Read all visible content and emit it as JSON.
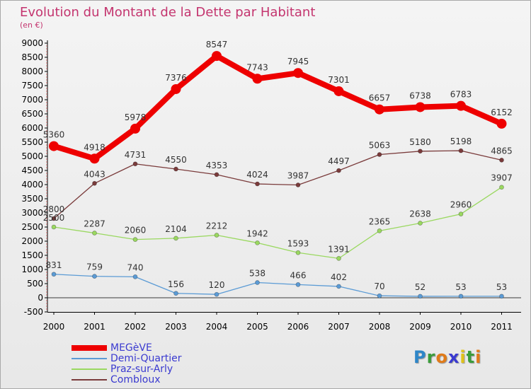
{
  "title": "Evolution du Montant de la Dette par Habitant",
  "unit": "(en €)",
  "logo": {
    "letters": [
      {
        "ch": "P",
        "color": "#2e86c8"
      },
      {
        "ch": "r",
        "color": "#3a9c3a"
      },
      {
        "ch": "o",
        "color": "#e07b1a"
      },
      {
        "ch": "x",
        "color": "#3a3ad0"
      },
      {
        "ch": "i",
        "color": "#e0c21a"
      },
      {
        "ch": "t",
        "color": "#3a9c3a"
      },
      {
        "ch": "i",
        "color": "#e07b1a"
      }
    ]
  },
  "chart_data": {
    "type": "line",
    "x": [
      "2000",
      "2001",
      "2002",
      "2003",
      "2004",
      "2005",
      "2006",
      "2007",
      "2008",
      "2009",
      "2010",
      "2011"
    ],
    "yticks": [
      "-500",
      "0",
      "500",
      "1000",
      "1500",
      "2000",
      "2500",
      "3000",
      "3500",
      "4000",
      "4500",
      "5000",
      "5500",
      "6000",
      "6500",
      "7000",
      "7500",
      "8000",
      "8500",
      "9000"
    ],
    "ylim": [
      -500,
      9000
    ],
    "grid": false,
    "legend_position": "bottom-left",
    "series": [
      {
        "name": "MEGèVE",
        "color": "#ee0000",
        "values": [
          5360,
          4918,
          5978,
          7376,
          8547,
          7743,
          7945,
          7301,
          6657,
          6738,
          6783,
          6152
        ],
        "labels": [
          "5360",
          "4918",
          "5978",
          "7376",
          "8547",
          "7743",
          "7945",
          "7301",
          "6657",
          "6738",
          "6783",
          "6152"
        ]
      },
      {
        "name": "Demi-Quartier",
        "color": "#5b9bd5",
        "values": [
          831,
          759,
          740,
          156,
          120,
          538,
          466,
          402,
          70,
          52,
          53,
          53
        ],
        "labels": [
          "831",
          "759",
          "740",
          "156",
          "120",
          "538",
          "466",
          "402",
          "70",
          "52",
          "53",
          "53"
        ]
      },
      {
        "name": "Praz-sur-Arly",
        "color": "#9ad860",
        "values": [
          2500,
          2287,
          2060,
          2104,
          2212,
          1942,
          1593,
          1391,
          2365,
          2638,
          2960,
          3907
        ],
        "labels": [
          "2500",
          "2287",
          "2060",
          "2104",
          "2212",
          "1942",
          "1593",
          "1391",
          "2365",
          "2638",
          "2960",
          "3907"
        ]
      },
      {
        "name": "Combloux",
        "color": "#7a3b3b",
        "values": [
          2800,
          4043,
          4731,
          4550,
          4353,
          4024,
          3987,
          4497,
          5063,
          5180,
          5198,
          4865
        ],
        "labels": [
          "2800",
          "4043",
          "4731",
          "4550",
          "4353",
          "4024",
          "3987",
          "4497",
          "5063",
          "5180",
          "5198",
          "4865"
        ]
      }
    ]
  }
}
